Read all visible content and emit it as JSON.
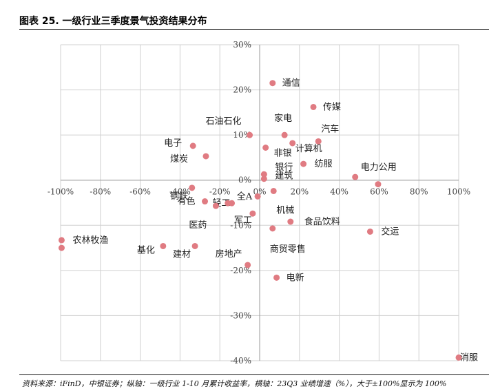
{
  "title": "图表 25. 一级行业三季度景气投资结果分布",
  "footnote": "资料来源：iFinD，中银证券；纵轴：一级行业 1-10 月累计收益率，横轴：23Q3 业绩增速（%），大于±100%显示为 100%",
  "colors": {
    "point": "#e07b82",
    "grid": "#d0d0d0",
    "axis": "#999999",
    "text": "#222222"
  },
  "chart_data": {
    "type": "scatter",
    "xlim": [
      -100,
      100
    ],
    "ylim": [
      -40,
      30
    ],
    "x_ticks": [
      -100,
      -80,
      -60,
      -40,
      -20,
      0,
      20,
      40,
      60,
      80,
      100
    ],
    "y_ticks": [
      -40,
      -30,
      -20,
      -10,
      0,
      10,
      20,
      30
    ],
    "x_tick_labels": [
      "-100%",
      "-80%",
      "-60%",
      "-40%",
      "-20%",
      "0%",
      "20%",
      "40%",
      "60%",
      "80%",
      "100%"
    ],
    "y_tick_labels": [
      "-40%",
      "-30%",
      "-20%",
      "-10%",
      "0%",
      "10%",
      "20%",
      "30%"
    ],
    "grid": true,
    "points": [
      {
        "label": "通信",
        "x": 6.5,
        "y": 21.5
      },
      {
        "label": "传媒",
        "x": 27,
        "y": 16.2
      },
      {
        "label": "家电",
        "x": 12.5,
        "y": 10
      },
      {
        "label": "汽车",
        "x": 29.5,
        "y": 8.6
      },
      {
        "label": "石油石化",
        "x": -5,
        "y": 10
      },
      {
        "label": "计算机",
        "x": 16.5,
        "y": 8.2
      },
      {
        "label": "非银",
        "x": 3,
        "y": 7.2
      },
      {
        "label": "电子",
        "x": -33.5,
        "y": 7.6
      },
      {
        "label": "纺服",
        "x": 22,
        "y": 3.6
      },
      {
        "label": "煤炭",
        "x": -27,
        "y": 5.3
      },
      {
        "label": "银行",
        "x": 2.2,
        "y": 1.3
      },
      {
        "label": "建筑",
        "x": 2.2,
        "y": 0.3
      },
      {
        "label": "电力公用",
        "x": 48,
        "y": 0.7
      },
      {
        "label": "",
        "x": 59.5,
        "y": -0.9
      },
      {
        "label": "钢铁",
        "x": -34,
        "y": -1.7
      },
      {
        "label": "机械",
        "x": 7,
        "y": -2.4
      },
      {
        "label": "全A",
        "x": -1,
        "y": -3.6
      },
      {
        "label": "有色",
        "x": -27.5,
        "y": -4.7
      },
      {
        "label": "轻工",
        "x": -14,
        "y": -5.1
      },
      {
        "label": "",
        "x": -16,
        "y": -5.1
      },
      {
        "label": "医药",
        "x": -22,
        "y": -5.7
      },
      {
        "label": "军工",
        "x": -3.5,
        "y": -7.4
      },
      {
        "label": "食品饮料",
        "x": 15.5,
        "y": -9.2
      },
      {
        "label": "商贸零售",
        "x": 6.5,
        "y": -10.7
      },
      {
        "label": "交运",
        "x": 55.5,
        "y": -11.4
      },
      {
        "label": "农林牧渔",
        "x": -99.5,
        "y": -13.3
      },
      {
        "label": "",
        "x": -99.5,
        "y": -15
      },
      {
        "label": "基化",
        "x": -48.5,
        "y": -14.6
      },
      {
        "label": "建材",
        "x": -32.5,
        "y": -14.6
      },
      {
        "label": "房地产",
        "x": -6,
        "y": -18.8
      },
      {
        "label": "电新",
        "x": 8.5,
        "y": -21.6
      },
      {
        "label": "消服",
        "x": 100,
        "y": -39.3
      }
    ]
  }
}
